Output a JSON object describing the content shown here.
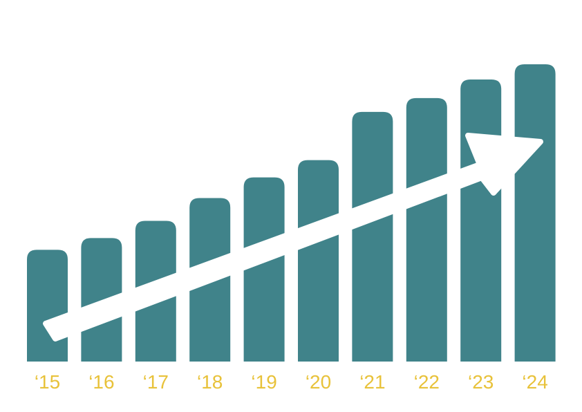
{
  "chart_data": {
    "type": "bar",
    "categories": [
      "‘15",
      "‘16",
      "‘17",
      "‘18",
      "‘19",
      "‘20",
      "‘21",
      "‘22",
      "‘23",
      "‘24"
    ],
    "values": [
      162,
      179,
      204,
      237,
      267,
      292,
      362,
      382,
      409,
      431
    ],
    "ylim": [
      0,
      431
    ],
    "grid": false,
    "legend": "none",
    "trend_arrow": true,
    "colors": {
      "bar": "#40838A",
      "tick_label": "#E8C23A",
      "arrow": "#FFFFFF",
      "background": "#FFFFFF"
    }
  }
}
